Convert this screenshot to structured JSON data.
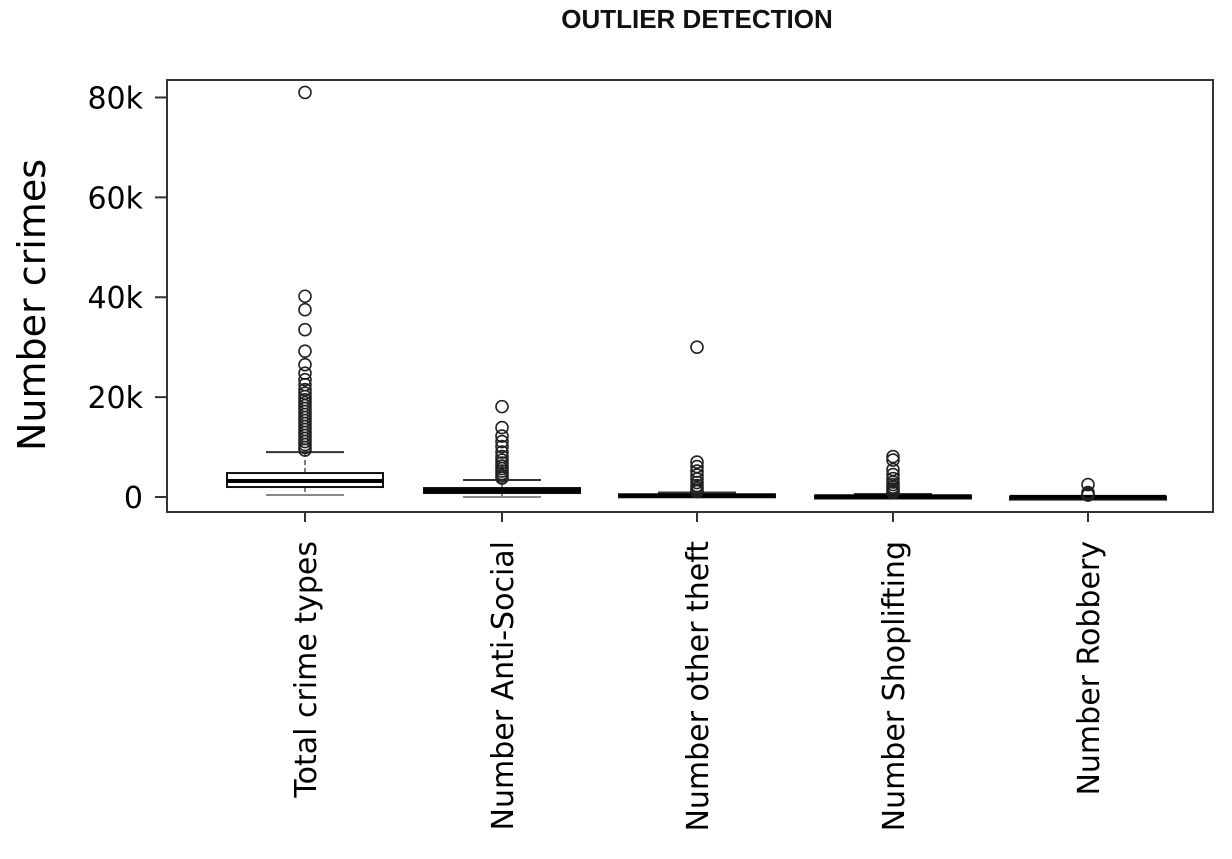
{
  "chart_data": {
    "type": "boxplot",
    "title": "OUTLIER DETECTION",
    "xlabel": "",
    "ylabel": "Number crimes",
    "ylim": [
      -3000,
      83500
    ],
    "yticks": [
      0,
      20000,
      40000,
      60000,
      80000
    ],
    "ytick_labels": [
      "0",
      "20k",
      "40k",
      "60k",
      "80k"
    ],
    "grid": false,
    "categories": [
      "Total crime types",
      "Number Anti-Social",
      "Number other theft",
      "Number Shoplifting",
      "Number Robbery"
    ],
    "series": [
      {
        "category": "Total crime types",
        "whisker_low": 400,
        "q1": 2000,
        "median": 3200,
        "q3": 4800,
        "whisker_high": 9000,
        "outliers": [
          81000,
          40200,
          37500,
          33500,
          29200,
          26500,
          24800,
          23500,
          22500,
          21500,
          20800,
          20100,
          19500,
          18900,
          18300,
          17700,
          17100,
          16500,
          15900,
          15300,
          14700,
          14100,
          13500,
          12900,
          12300,
          11700,
          11100,
          10500,
          9900,
          9400
        ]
      },
      {
        "category": "Number Anti-Social",
        "whisker_low": 0,
        "q1": 800,
        "median": 1300,
        "q3": 1800,
        "whisker_high": 3400,
        "outliers": [
          18100,
          13900,
          12200,
          11100,
          10100,
          9000,
          8100,
          7400,
          6800,
          6200,
          5700,
          5200,
          4700,
          4200,
          3800
        ]
      },
      {
        "category": "Number other theft",
        "whisker_low": 0,
        "q1": 150,
        "median": 300,
        "q3": 550,
        "whisker_high": 900,
        "outliers": [
          30000,
          7000,
          6100,
          5200,
          4400,
          3600,
          2900,
          2300,
          1800,
          1400,
          1100
        ]
      },
      {
        "category": "Number Shoplifting",
        "whisker_low": 0,
        "q1": 50,
        "median": 150,
        "q3": 300,
        "whisker_high": 600,
        "outliers": [
          8100,
          7400,
          5500,
          4500,
          3700,
          3000,
          2500,
          2000,
          1600,
          1200,
          900
        ]
      },
      {
        "category": "Number Robbery",
        "whisker_low": 0,
        "q1": 10,
        "median": 40,
        "q3": 90,
        "whisker_high": 200,
        "outliers": [
          2500,
          900,
          600,
          400
        ]
      }
    ]
  }
}
